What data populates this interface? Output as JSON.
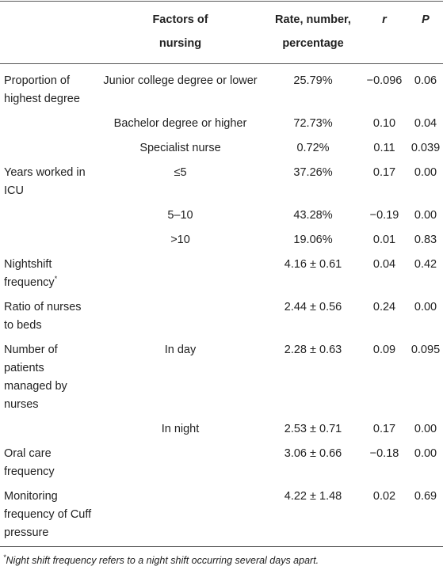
{
  "table": {
    "header": [
      "Factors of nursing",
      "Rate, number, percentage",
      "r",
      "P"
    ],
    "rows": [
      [
        "Proportion of highest degree",
        "Junior college degree or lower",
        "25.79%",
        "−0.096",
        "0.06"
      ],
      [
        null,
        "Bachelor degree or higher",
        "72.73%",
        "0.10",
        "0.04"
      ],
      [
        null,
        "Specialist nurse",
        "0.72%",
        "0.11",
        "0.039"
      ],
      [
        "Years worked in ICU",
        "≤5",
        "37.26%",
        "0.17",
        "0.00"
      ],
      [
        null,
        "5–10",
        "43.28%",
        "−0.19",
        "0.00"
      ],
      [
        null,
        ">10",
        "19.06%",
        "0.01",
        "0.83"
      ],
      [
        {
          "text": "Nightshift frequency",
          "sup": "*"
        },
        null,
        "4.16 ± 0.61",
        "0.04",
        "0.42"
      ],
      [
        "Ratio of nurses to beds",
        null,
        "2.44 ± 0.56",
        "0.24",
        "0.00"
      ],
      [
        "Number of patients managed by nurses",
        "In day",
        "2.28 ± 0.63",
        "0.09",
        "0.095"
      ],
      [
        null,
        "In night",
        "2.53 ± 0.71",
        "0.17",
        "0.00"
      ],
      [
        "Oral care frequency",
        null,
        "3.06 ± 0.66",
        "−0.18",
        "0.00"
      ],
      [
        "Monitoring frequency of Cuff pressure",
        null,
        "4.22 ± 1.48",
        "0.02",
        "0.69"
      ]
    ],
    "footnote": {
      "mark": "*",
      "text": "Night shift frequency refers to a night shift occurring several days apart."
    }
  }
}
